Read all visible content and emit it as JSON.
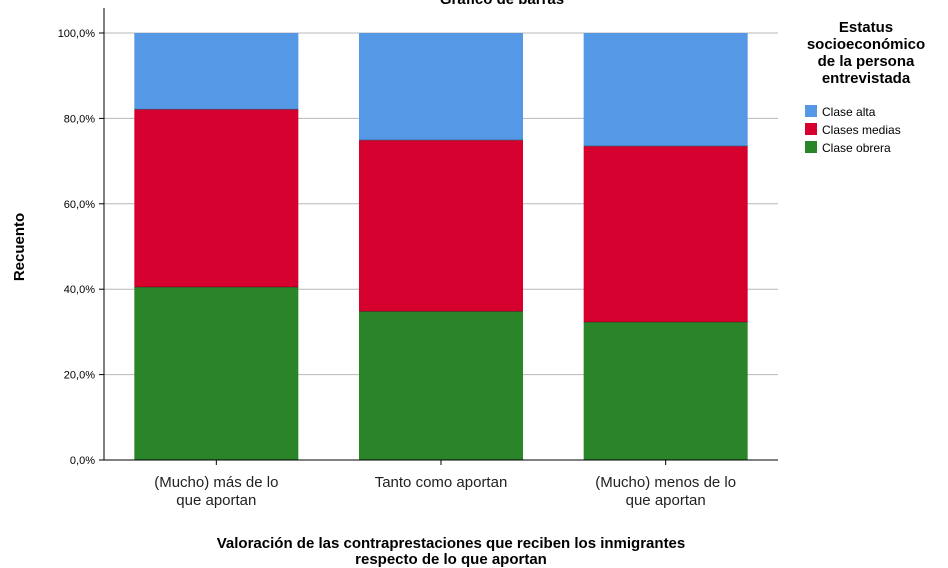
{
  "chart_data": {
    "type": "bar",
    "stacked": true,
    "title": "Gráfico de barras",
    "xlabel": [
      "Valoración de las contraprestaciones que reciben los inmigrantes",
      "respecto de lo que aportan"
    ],
    "ylabel": "Recuento",
    "ylim": [
      0,
      100
    ],
    "y_ticks": [
      "0,0%",
      "20,0%",
      "40,0%",
      "60,0%",
      "80,0%",
      "100,0%"
    ],
    "grid": true,
    "categories": [
      [
        "(Mucho) más de lo",
        "que aportan"
      ],
      [
        "Tanto como aportan"
      ],
      [
        "(Mucho) menos de lo",
        "que aportan"
      ]
    ],
    "legend": {
      "title": [
        "Estatus",
        "socioeconómico",
        "de la persona",
        "entrevistada"
      ],
      "placement": "top-right"
    },
    "series": [
      {
        "name": "Clase obrera",
        "color": "#2a852a",
        "values": [
          40.5,
          34.8,
          32.3
        ]
      },
      {
        "name": "Clases medias",
        "color": "#d6002f",
        "values": [
          41.6,
          40.1,
          41.2
        ]
      },
      {
        "name": "Clase alta",
        "color": "#5599e6",
        "values": [
          17.9,
          25.1,
          26.5
        ]
      }
    ],
    "legend_order": [
      "Clase alta",
      "Clases medias",
      "Clase obrera"
    ]
  }
}
